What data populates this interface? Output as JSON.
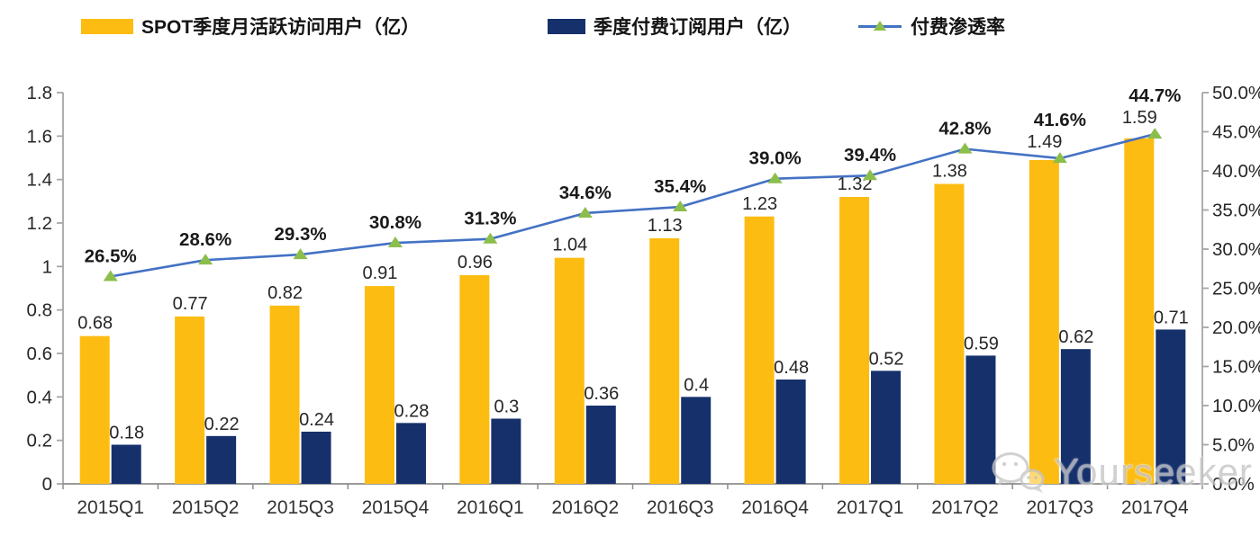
{
  "legend": {
    "items": [
      {
        "label": "SPOT季度月活跃访问用户（亿）",
        "type": "bar",
        "swatch_color": "#FDBC11"
      },
      {
        "label": "季度付费订阅用户（亿）",
        "type": "bar",
        "swatch_color": "#16306C"
      },
      {
        "label": "付费渗透率",
        "type": "line",
        "swatch_color": "#4472C4",
        "marker_color": "#8CBE4B"
      }
    ]
  },
  "chart_data": {
    "type": "combo-bar-line",
    "categories": [
      "2015Q1",
      "2015Q2",
      "2015Q3",
      "2015Q4",
      "2016Q1",
      "2016Q2",
      "2016Q3",
      "2016Q4",
      "2017Q1",
      "2017Q2",
      "2017Q3",
      "2017Q4"
    ],
    "series": [
      {
        "name": "SPOT季度月活跃访问用户（亿）",
        "type": "bar",
        "axis": "left",
        "color": "#FDBC11",
        "values": [
          0.68,
          0.77,
          0.82,
          0.91,
          0.96,
          1.04,
          1.13,
          1.23,
          1.32,
          1.38,
          1.49,
          1.59
        ],
        "labels": [
          "0.68",
          "0.77",
          "0.82",
          "0.91",
          "0.96",
          "1.04",
          "1.13",
          "1.23",
          "1.32",
          "1.38",
          "1.49",
          "1.59"
        ]
      },
      {
        "name": "季度付费订阅用户（亿）",
        "type": "bar",
        "axis": "left",
        "color": "#16306C",
        "values": [
          0.18,
          0.22,
          0.24,
          0.28,
          0.3,
          0.36,
          0.4,
          0.48,
          0.52,
          0.59,
          0.62,
          0.71
        ],
        "labels": [
          "0.18",
          "0.22",
          "0.24",
          "0.28",
          "0.3",
          "0.36",
          "0.4",
          "0.48",
          "0.52",
          "0.59",
          "0.62",
          "0.71"
        ]
      },
      {
        "name": "付费渗透率",
        "type": "line",
        "axis": "right",
        "color": "#4472C4",
        "marker": "triangle",
        "marker_color": "#8CBE4B",
        "values": [
          26.5,
          28.6,
          29.3,
          30.8,
          31.3,
          34.6,
          35.4,
          39.0,
          39.4,
          42.8,
          41.6,
          44.7
        ],
        "labels": [
          "26.5%",
          "28.6%",
          "29.3%",
          "30.8%",
          "31.3%",
          "34.6%",
          "35.4%",
          "39.0%",
          "39.4%",
          "42.8%",
          "41.6%",
          "44.7%"
        ]
      }
    ],
    "left_axis": {
      "min": 0,
      "max": 1.8,
      "step": 0.2,
      "tick_labels": [
        "0",
        "0.2",
        "0.4",
        "0.6",
        "0.8",
        "1",
        "1.2",
        "1.4",
        "1.6",
        "1.8"
      ]
    },
    "right_axis": {
      "min": 0,
      "max": 50,
      "step": 5,
      "tick_labels": [
        "0.0%",
        "5.0%",
        "10.0%",
        "15.0%",
        "20.0%",
        "25.0%",
        "30.0%",
        "35.0%",
        "40.0%",
        "45.0%",
        "50.0%"
      ]
    },
    "grid": false,
    "legend_position": "top",
    "title": ""
  },
  "watermark": {
    "text": "Yourseeker",
    "icon": "wechat-icon"
  },
  "colors": {
    "axis_line": "#A6A6A6",
    "label_text": "#262626",
    "percent_label_text": "#1a1a1a",
    "watermark_gray": "#c6c6c6"
  }
}
